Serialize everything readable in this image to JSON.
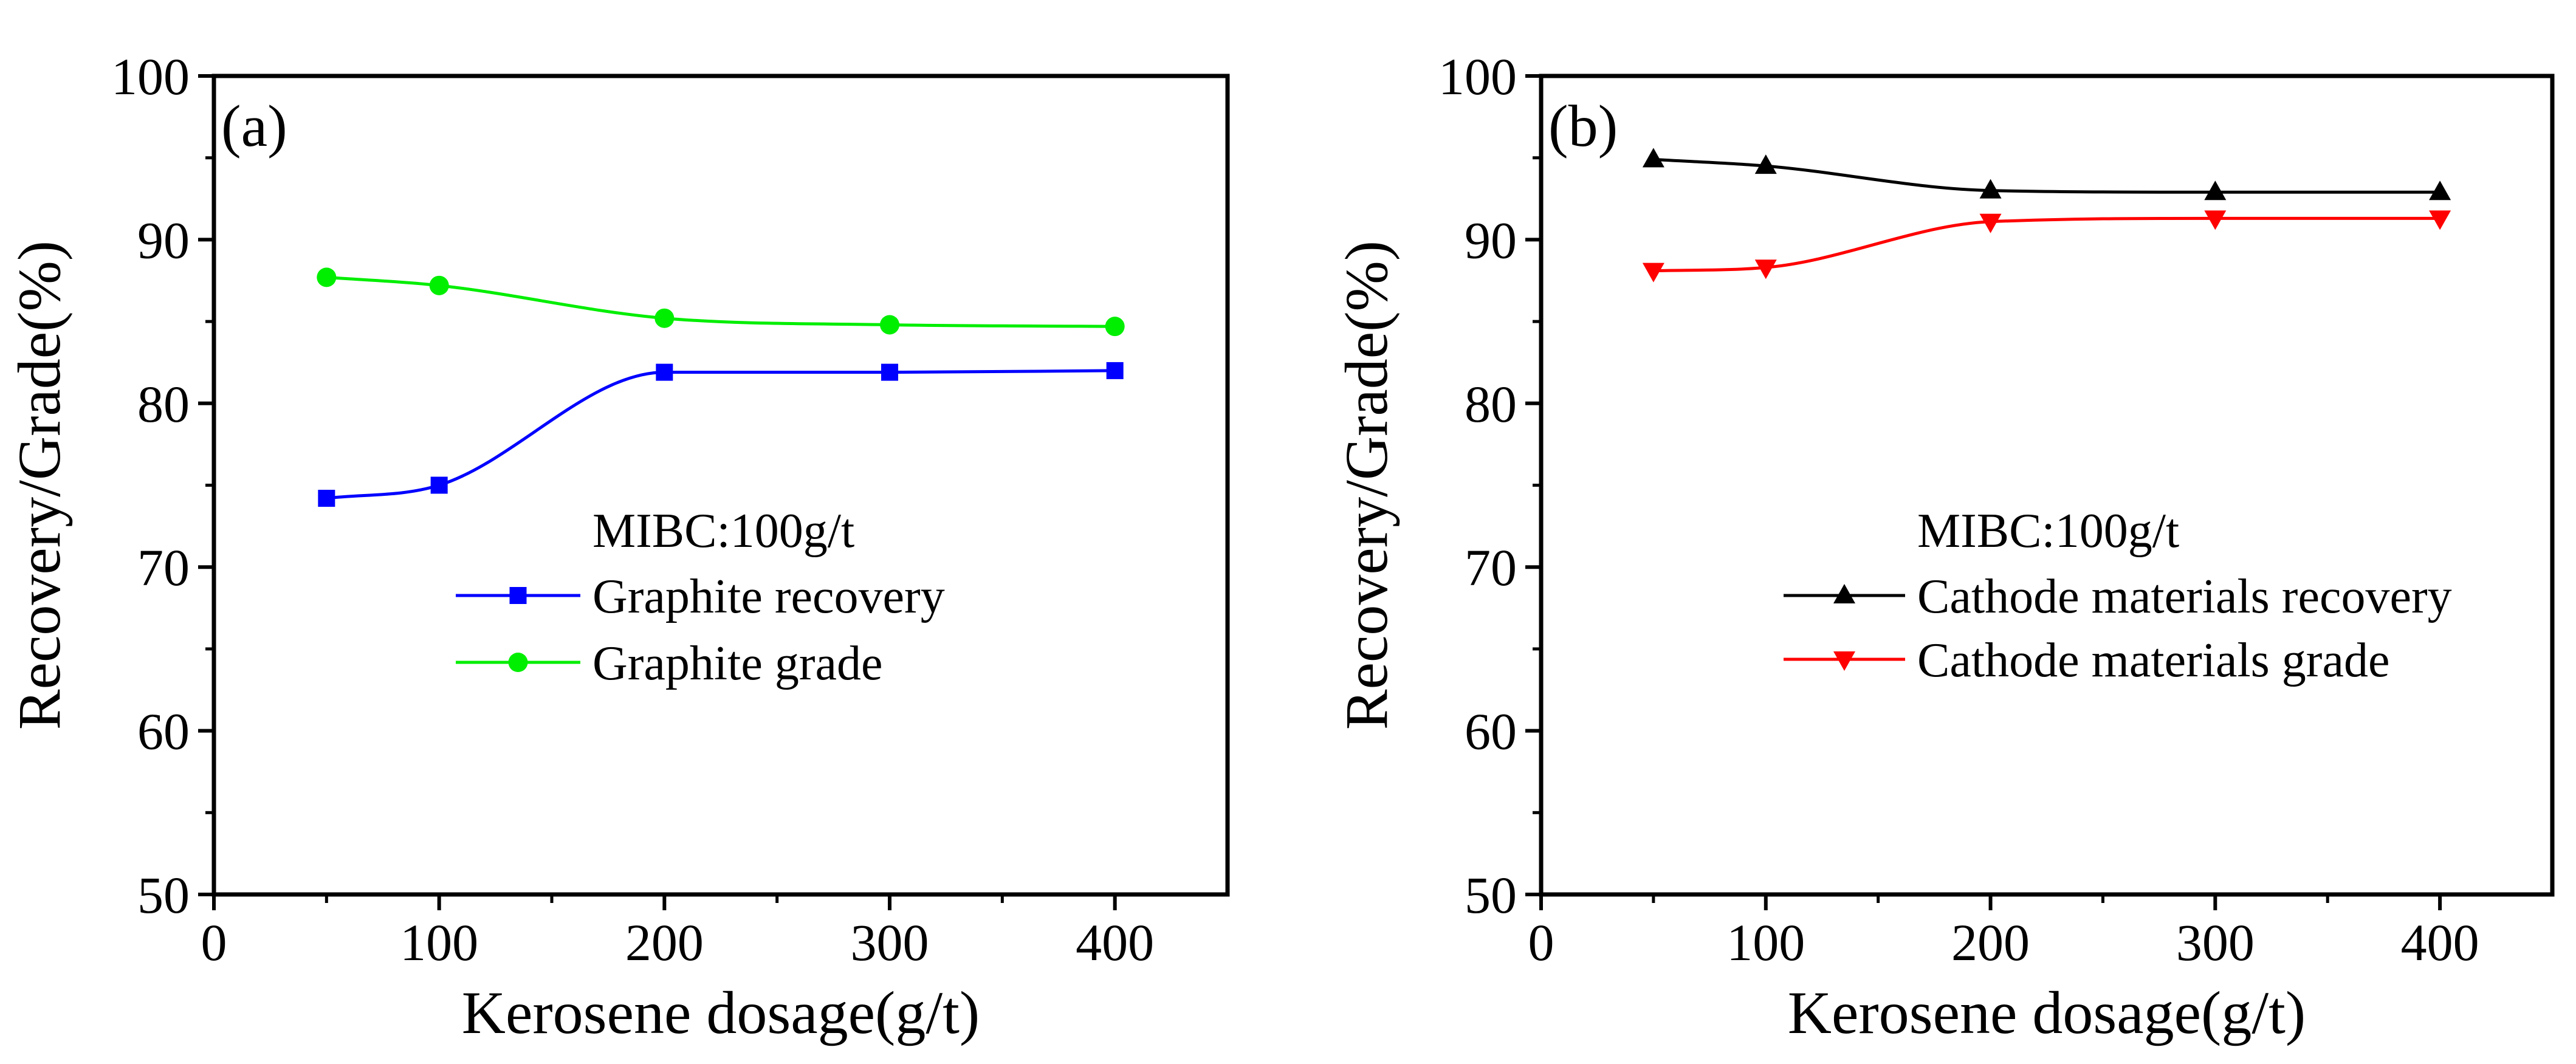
{
  "chart_data": [
    {
      "type": "line",
      "panel_label": "(a)",
      "xlabel": "Kerosene dosage(g/t)",
      "ylabel": "Recovery/Grade(%)",
      "xlim": [
        0,
        450
      ],
      "ylim": [
        50,
        100
      ],
      "xticks": [
        0,
        100,
        200,
        300,
        400
      ],
      "yticks": [
        50,
        60,
        70,
        80,
        90,
        100
      ],
      "annotation": "MIBC:100g/t",
      "legend_position": "center-left",
      "grid": false,
      "x": [
        50,
        100,
        200,
        300,
        400
      ],
      "series": [
        {
          "name": "Graphite recovery",
          "color": "#0000ff",
          "marker": "square",
          "values": [
            74.2,
            75.0,
            81.9,
            81.9,
            82.0
          ]
        },
        {
          "name": "Graphite grade",
          "color": "#00ee00",
          "marker": "circle",
          "values": [
            87.7,
            87.2,
            85.2,
            84.8,
            84.7
          ]
        }
      ]
    },
    {
      "type": "line",
      "panel_label": "(b)",
      "xlabel": "Kerosene dosage(g/t)",
      "ylabel": "Recovery/Grade(%)",
      "xlim": [
        0,
        450
      ],
      "ylim": [
        50,
        100
      ],
      "xticks": [
        0,
        100,
        200,
        300,
        400
      ],
      "yticks": [
        50,
        60,
        70,
        80,
        90,
        100
      ],
      "annotation": "MIBC:100g/t",
      "legend_position": "center-right",
      "grid": false,
      "x": [
        50,
        100,
        200,
        300,
        400
      ],
      "series": [
        {
          "name": "Cathode materials recovery",
          "color": "#000000",
          "marker": "triangle-up",
          "values": [
            94.9,
            94.5,
            93.0,
            92.9,
            92.9
          ]
        },
        {
          "name": "Cathode materials grade",
          "color": "#ff0000",
          "marker": "triangle-down",
          "values": [
            88.1,
            88.3,
            91.1,
            91.3,
            91.3
          ]
        }
      ]
    }
  ]
}
